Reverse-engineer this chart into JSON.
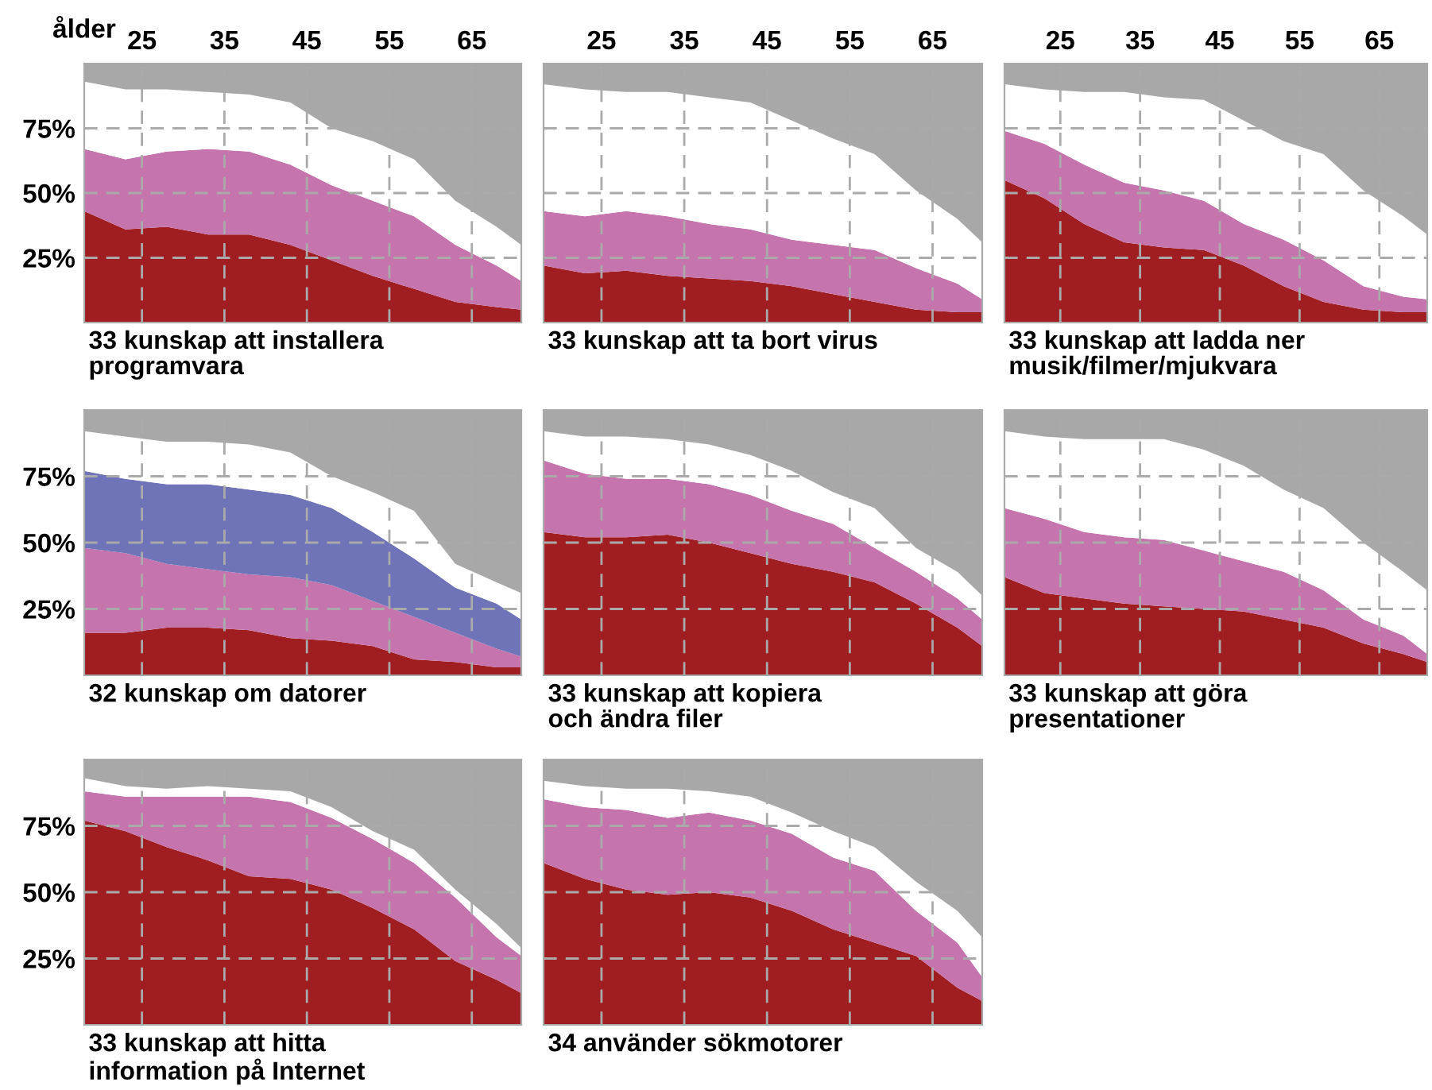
{
  "chart_data": [
    {
      "type": "area",
      "stacked": true,
      "title": "33 kunskap att installera\nprogramvara",
      "xlabel": "ålder",
      "x": [
        18,
        23,
        28,
        33,
        38,
        43,
        48,
        53,
        58,
        63,
        68,
        71
      ],
      "xlim": [
        18,
        71
      ],
      "xticks": [
        25,
        35,
        45,
        55,
        65
      ],
      "ylim": [
        0,
        100
      ],
      "yticks": [
        {
          "value": 25,
          "label": "25%"
        },
        {
          "value": 50,
          "label": "50%"
        },
        {
          "value": 75,
          "label": "75%"
        }
      ],
      "grid": true,
      "series": [
        {
          "color": "#a01e22",
          "values": [
            43,
            36,
            37,
            34,
            34,
            30,
            24,
            18,
            13,
            8,
            6,
            5
          ]
        },
        {
          "color": "#c674ad",
          "values": [
            24,
            27,
            29,
            33,
            32,
            31,
            29,
            29,
            28,
            22,
            16,
            11
          ]
        },
        {
          "color": "#ffffff",
          "values": [
            26,
            27,
            24,
            22,
            22,
            24,
            22,
            23,
            22,
            17,
            15,
            14
          ]
        },
        {
          "color": "#a8a8a8",
          "values": [
            7,
            10,
            10,
            11,
            12,
            15,
            25,
            30,
            37,
            53,
            63,
            70
          ]
        }
      ]
    },
    {
      "type": "area",
      "stacked": true,
      "title": "33 kunskap att ta bort virus",
      "x": [
        18,
        23,
        28,
        33,
        38,
        43,
        48,
        53,
        58,
        63,
        68,
        71
      ],
      "xlim": [
        18,
        71
      ],
      "xticks": [
        25,
        35,
        45,
        55,
        65
      ],
      "ylim": [
        0,
        100
      ],
      "yticks": [
        {
          "value": 25,
          "label": null
        },
        {
          "value": 50,
          "label": null
        },
        {
          "value": 75,
          "label": null
        }
      ],
      "grid": true,
      "tick_labels": "x",
      "series": [
        {
          "color": "#a01e22",
          "values": [
            22,
            19,
            20,
            18,
            17,
            16,
            14,
            11,
            8,
            5,
            4,
            4
          ]
        },
        {
          "color": "#c674ad",
          "values": [
            21,
            22,
            23,
            23,
            21,
            20,
            18,
            19,
            20,
            16,
            11,
            5
          ]
        },
        {
          "color": "#ffffff",
          "values": [
            49,
            49,
            46,
            48,
            49,
            49,
            46,
            41,
            37,
            30,
            25,
            22
          ]
        },
        {
          "color": "#a8a8a8",
          "values": [
            8,
            10,
            11,
            11,
            13,
            15,
            22,
            29,
            35,
            49,
            60,
            69
          ]
        }
      ]
    },
    {
      "type": "area",
      "stacked": true,
      "title": "33 kunskap att ladda ner\nmusik/filmer/mjukvara",
      "x": [
        18,
        23,
        28,
        33,
        38,
        43,
        48,
        53,
        58,
        63,
        68,
        71
      ],
      "xlim": [
        18,
        71
      ],
      "xticks": [
        25,
        35,
        45,
        55,
        65
      ],
      "ylim": [
        0,
        100
      ],
      "yticks": [
        {
          "value": 25,
          "label": null
        },
        {
          "value": 50,
          "label": null
        },
        {
          "value": 75,
          "label": null
        }
      ],
      "grid": true,
      "tick_labels": "x",
      "series": [
        {
          "color": "#a01e22",
          "values": [
            55,
            48,
            38,
            31,
            29,
            28,
            22,
            14,
            8,
            5,
            4,
            4
          ]
        },
        {
          "color": "#c674ad",
          "values": [
            19,
            21,
            23,
            23,
            22,
            19,
            16,
            18,
            16,
            9,
            6,
            5
          ]
        },
        {
          "color": "#ffffff",
          "values": [
            18,
            21,
            28,
            35,
            36,
            39,
            40,
            38,
            41,
            37,
            31,
            25
          ]
        },
        {
          "color": "#a8a8a8",
          "values": [
            8,
            10,
            11,
            11,
            13,
            14,
            22,
            30,
            35,
            49,
            59,
            66
          ]
        }
      ]
    },
    {
      "type": "area",
      "stacked": true,
      "title": "32 kunskap om datorer",
      "x": [
        18,
        23,
        28,
        33,
        38,
        43,
        48,
        53,
        58,
        63,
        68,
        71
      ],
      "xlim": [
        18,
        71
      ],
      "xticks": [
        25,
        35,
        45,
        55,
        65
      ],
      "ylim": [
        0,
        100
      ],
      "yticks": [
        {
          "value": 25,
          "label": "25%"
        },
        {
          "value": 50,
          "label": "50%"
        },
        {
          "value": 75,
          "label": "75%"
        }
      ],
      "grid": true,
      "tick_labels": "y",
      "series": [
        {
          "color": "#a01e22",
          "values": [
            16,
            16,
            18,
            18,
            17,
            14,
            13,
            11,
            6,
            5,
            3,
            3
          ]
        },
        {
          "color": "#c674ad",
          "values": [
            32,
            30,
            24,
            22,
            21,
            23,
            21,
            17,
            16,
            11,
            7,
            4
          ]
        },
        {
          "color": "#6f73b8",
          "values": [
            29,
            28,
            30,
            32,
            32,
            31,
            29,
            26,
            22,
            17,
            17,
            14
          ]
        },
        {
          "color": "#ffffff",
          "values": [
            15,
            16,
            16,
            16,
            17,
            16,
            12,
            15,
            18,
            9,
            8,
            10
          ]
        },
        {
          "color": "#a8a8a8",
          "values": [
            8,
            10,
            12,
            12,
            13,
            16,
            25,
            31,
            38,
            58,
            65,
            69
          ]
        }
      ]
    },
    {
      "type": "area",
      "stacked": true,
      "title": "33 kunskap att kopiera\noch ändra filer",
      "x": [
        18,
        23,
        28,
        33,
        38,
        43,
        48,
        53,
        58,
        63,
        68,
        71
      ],
      "xlim": [
        18,
        71
      ],
      "xticks": [
        25,
        35,
        45,
        55,
        65
      ],
      "ylim": [
        0,
        100
      ],
      "yticks": [
        {
          "value": 25,
          "label": null
        },
        {
          "value": 50,
          "label": null
        },
        {
          "value": 75,
          "label": null
        }
      ],
      "grid": true,
      "tick_labels": false,
      "series": [
        {
          "color": "#a01e22",
          "values": [
            54,
            52,
            52,
            53,
            50,
            46,
            42,
            39,
            35,
            27,
            18,
            11
          ]
        },
        {
          "color": "#c674ad",
          "values": [
            27,
            24,
            22,
            21,
            22,
            22,
            20,
            18,
            13,
            12,
            11,
            10
          ]
        },
        {
          "color": "#ffffff",
          "values": [
            11,
            14,
            16,
            15,
            15,
            15,
            15,
            12,
            15,
            9,
            10,
            9
          ]
        },
        {
          "color": "#a8a8a8",
          "values": [
            8,
            10,
            10,
            11,
            13,
            17,
            23,
            31,
            37,
            52,
            61,
            70
          ]
        }
      ]
    },
    {
      "type": "area",
      "stacked": true,
      "title": "33 kunskap att göra\npresentationer",
      "x": [
        18,
        23,
        28,
        33,
        38,
        43,
        48,
        53,
        58,
        63,
        68,
        71
      ],
      "xlim": [
        18,
        71
      ],
      "xticks": [
        25,
        35,
        45,
        55,
        65
      ],
      "ylim": [
        0,
        100
      ],
      "yticks": [
        {
          "value": 25,
          "label": null
        },
        {
          "value": 50,
          "label": null
        },
        {
          "value": 75,
          "label": null
        }
      ],
      "grid": true,
      "tick_labels": false,
      "series": [
        {
          "color": "#a01e22",
          "values": [
            37,
            31,
            29,
            27,
            26,
            25,
            24,
            21,
            18,
            12,
            8,
            5
          ]
        },
        {
          "color": "#c674ad",
          "values": [
            26,
            28,
            25,
            25,
            25,
            22,
            19,
            18,
            14,
            9,
            7,
            3
          ]
        },
        {
          "color": "#ffffff",
          "values": [
            29,
            31,
            35,
            37,
            38,
            38,
            36,
            31,
            31,
            29,
            24,
            24
          ]
        },
        {
          "color": "#a8a8a8",
          "values": [
            8,
            10,
            11,
            11,
            11,
            15,
            21,
            30,
            37,
            50,
            61,
            68
          ]
        }
      ]
    },
    {
      "type": "area",
      "stacked": true,
      "title": "33 kunskap att hitta\ninformation på Internet",
      "x": [
        18,
        23,
        28,
        33,
        38,
        43,
        48,
        53,
        58,
        63,
        68,
        71
      ],
      "xlim": [
        18,
        71
      ],
      "xticks": [
        25,
        35,
        45,
        55,
        65
      ],
      "ylim": [
        0,
        100
      ],
      "yticks": [
        {
          "value": 25,
          "label": "25%"
        },
        {
          "value": 50,
          "label": "50%"
        },
        {
          "value": 75,
          "label": "75%"
        }
      ],
      "grid": true,
      "tick_labels": "y",
      "series": [
        {
          "color": "#a01e22",
          "values": [
            77,
            73,
            67,
            62,
            56,
            55,
            51,
            44,
            36,
            24,
            17,
            12
          ]
        },
        {
          "color": "#c674ad",
          "values": [
            11,
            13,
            19,
            24,
            30,
            29,
            27,
            26,
            25,
            24,
            16,
            14
          ]
        },
        {
          "color": "#ffffff",
          "values": [
            5,
            4,
            3,
            4,
            3,
            4,
            4,
            3,
            5,
            3,
            5,
            3
          ]
        },
        {
          "color": "#a8a8a8",
          "values": [
            7,
            10,
            11,
            10,
            11,
            12,
            18,
            27,
            34,
            49,
            62,
            71
          ]
        }
      ]
    },
    {
      "type": "area",
      "stacked": true,
      "title": "34 använder sökmotorer",
      "x": [
        18,
        23,
        28,
        33,
        38,
        43,
        48,
        53,
        58,
        63,
        68,
        71
      ],
      "xlim": [
        18,
        71
      ],
      "xticks": [
        25,
        35,
        45,
        55,
        65
      ],
      "ylim": [
        0,
        100
      ],
      "yticks": [
        {
          "value": 25,
          "label": null
        },
        {
          "value": 50,
          "label": null
        },
        {
          "value": 75,
          "label": null
        }
      ],
      "grid": true,
      "tick_labels": false,
      "series": [
        {
          "color": "#a01e22",
          "values": [
            61,
            55,
            51,
            49,
            50,
            48,
            43,
            36,
            31,
            26,
            14,
            9
          ]
        },
        {
          "color": "#c674ad",
          "values": [
            24,
            27,
            30,
            29,
            30,
            29,
            29,
            27,
            27,
            17,
            17,
            9
          ]
        },
        {
          "color": "#ffffff",
          "values": [
            7,
            8,
            8,
            11,
            8,
            9,
            8,
            10,
            9,
            11,
            12,
            15
          ]
        },
        {
          "color": "#a8a8a8",
          "values": [
            8,
            10,
            11,
            11,
            12,
            14,
            20,
            27,
            33,
            46,
            57,
            67
          ]
        }
      ]
    }
  ]
}
